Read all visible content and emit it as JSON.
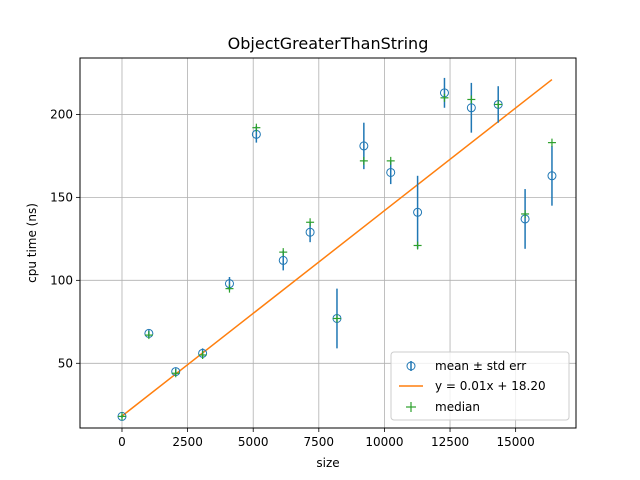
{
  "chart_data": {
    "type": "scatter",
    "title": "ObjectGreaterThanString",
    "xlabel": "size",
    "ylabel": "cpu time (ns)",
    "xlim": [
      -1600,
      17300
    ],
    "ylim": [
      11,
      234
    ],
    "xticks": [
      0,
      2500,
      5000,
      7500,
      10000,
      12500,
      15000
    ],
    "xtick_labels": [
      "0",
      "2500",
      "5000",
      "7500",
      "10000",
      "12500",
      "15000"
    ],
    "yticks": [
      50,
      100,
      150,
      200
    ],
    "ytick_labels": [
      "50",
      "100",
      "150",
      "200"
    ],
    "grid": true,
    "legend_position": "lower-right",
    "colors": {
      "mean": "#1f77b4",
      "fit": "#ff7f0e",
      "median": "#2ca02c"
    },
    "series": [
      {
        "name": "mean ± std err",
        "kind": "errorbar",
        "x": [
          0,
          1024,
          2048,
          3072,
          4096,
          5120,
          6144,
          7168,
          8192,
          9216,
          10240,
          11264,
          12288,
          13312,
          14336,
          15360,
          16384
        ],
        "y": [
          18,
          68,
          45,
          56,
          98,
          188,
          112,
          129,
          77,
          181,
          165,
          141,
          213,
          204,
          206,
          137,
          163
        ],
        "err": [
          1,
          2,
          2,
          3,
          4,
          5,
          6,
          6,
          18,
          14,
          7,
          22,
          9,
          15,
          11,
          18,
          18
        ]
      },
      {
        "name": "y = 0.01x + 18.20",
        "kind": "line",
        "x": [
          0,
          16384
        ],
        "y": [
          18.2,
          221
        ]
      },
      {
        "name": "median",
        "kind": "marker",
        "x": [
          0,
          1024,
          2048,
          3072,
          4096,
          5120,
          6144,
          7168,
          8192,
          9216,
          10240,
          11264,
          12288,
          13312,
          14336,
          15360,
          16384
        ],
        "y": [
          18,
          67,
          44,
          55,
          95,
          192,
          117,
          135,
          77,
          172,
          172,
          121,
          210,
          209,
          206,
          140,
          183
        ]
      }
    ]
  }
}
